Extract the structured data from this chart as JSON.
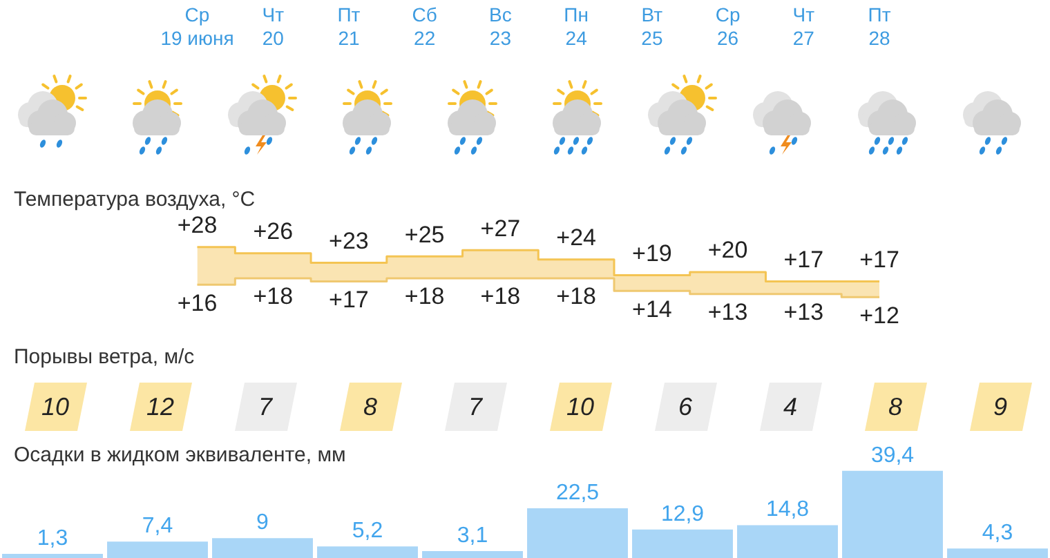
{
  "chart_data": [
    {
      "type": "step",
      "title": "Температура воздуха, °C",
      "categories": [
        "Ср\n19 июня",
        "Чт\n20",
        "Пт\n21",
        "Сб\n22",
        "Вс\n23",
        "Пн\n24",
        "Вт\n25",
        "Ср\n26",
        "Чт\n27",
        "Пт\n28"
      ],
      "tick_labels": "x",
      "series": [
        {
          "values": [
            28,
            26,
            23,
            25,
            27,
            24,
            19,
            20,
            17,
            17
          ],
          "value_labels": [
            "+28",
            "+26",
            "+23",
            "+25",
            "+27",
            "+24",
            "+19",
            "+20",
            "+17",
            "+17"
          ],
          "color": "#f4c453",
          "lower": [
            16,
            18,
            17,
            18,
            18,
            18,
            14,
            13,
            13,
            12
          ],
          "upper": [
            28,
            26,
            23,
            25,
            27,
            24,
            19,
            20,
            17,
            17
          ]
        },
        {
          "values": [
            16,
            18,
            17,
            18,
            18,
            18,
            14,
            13,
            13,
            12
          ],
          "value_labels": [
            "+16",
            "+18",
            "+17",
            "+18",
            "+18",
            "+18",
            "+14",
            "+13",
            "+13",
            "+12"
          ],
          "color": "#efc870"
        }
      ]
    },
    {
      "type": "other",
      "title": "Порывы ветра, м/с",
      "values": [
        10,
        12,
        7,
        8,
        7,
        10,
        6,
        4,
        8,
        9
      ],
      "colors": [
        "#fce6a4",
        "#fce6a4",
        "#ededed",
        "#fce6a4",
        "#ededed",
        "#fce6a4",
        "#ededed",
        "#ededed",
        "#fce6a4",
        "#fce6a4"
      ],
      "data_labels": true
    },
    {
      "type": "bar",
      "title": "Осадки в жидком эквиваленте, мм",
      "categories": [
        null,
        null,
        null,
        null,
        null,
        null,
        null,
        null,
        null,
        null
      ],
      "values": [
        1.3,
        7.4,
        9,
        5.2,
        3.1,
        22.5,
        12.9,
        14.8,
        39.4,
        4.3
      ],
      "value_labels": [
        "1,3",
        "7,4",
        "9",
        "5,2",
        "3,1",
        "22,5",
        "12,9",
        "14,8",
        "39,4",
        "4,3"
      ],
      "color": "#a9d6f7",
      "tick_labels": false
    }
  ]
}
